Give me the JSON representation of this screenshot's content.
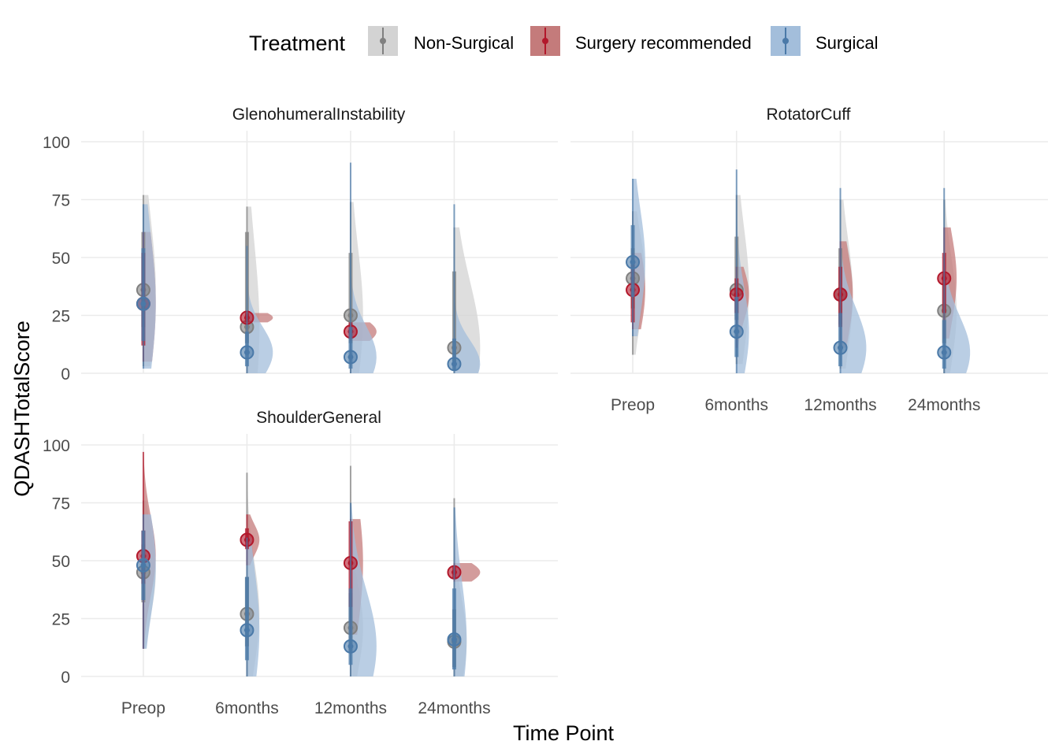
{
  "legend": {
    "title": "Treatment",
    "position": "top",
    "entries": [
      {
        "name": "Non-Surgical",
        "color": "#808080",
        "fill": "#d3d3d3"
      },
      {
        "name": "Surgery recommended",
        "color": "#b2182b",
        "fill": "#c47b7b"
      },
      {
        "name": "Surgical",
        "color": "#4a79a8",
        "fill": "#a3bedb"
      }
    ]
  },
  "axes": {
    "xlabel": "Time Point",
    "ylabel": "QDASHTotalScore"
  },
  "chart_data": {
    "type": "raincloud (half-violin + point-range)",
    "categories": [
      "Preop",
      "6months",
      "12months",
      "24months"
    ],
    "ylim": [
      0,
      100
    ],
    "yticks": [
      0,
      25,
      50,
      75,
      100
    ],
    "grid": true,
    "series_names": [
      "Non-Surgical",
      "Surgery recommended",
      "Surgical"
    ],
    "panels": [
      {
        "title": "GlenohumeralInstability",
        "series": [
          {
            "name": "Non-Surgical",
            "mean": [
              36,
              20,
              25,
              11
            ],
            "iqr": [
              [
                20,
                61
              ],
              [
                13,
                61
              ],
              [
                13,
                52
              ],
              [
                5,
                44
              ]
            ],
            "range": [
              [
                3,
                77
              ],
              [
                0,
                72
              ],
              [
                0,
                74
              ],
              [
                0,
                63
              ]
            ]
          },
          {
            "name": "Surgery recommended",
            "mean": [
              30,
              24,
              18,
              null
            ],
            "iqr": [
              [
                12,
                52
              ],
              [
                22,
                26
              ],
              [
                15,
                22
              ],
              null
            ],
            "range": [
              [
                5,
                61
              ],
              [
                22,
                26
              ],
              [
                14,
                22
              ],
              null
            ]
          },
          {
            "name": "Surgical",
            "mean": [
              30,
              9,
              7,
              4
            ],
            "iqr": [
              [
                14,
                54
              ],
              [
                3,
                18
              ],
              [
                2,
                20
              ],
              [
                1,
                15
              ]
            ],
            "range": [
              [
                2,
                73
              ],
              [
                0,
                55
              ],
              [
                0,
                91
              ],
              [
                0,
                73
              ]
            ]
          }
        ]
      },
      {
        "title": "RotatorCuff",
        "series": [
          {
            "name": "Non-Surgical",
            "mean": [
              41,
              36,
              34,
              27
            ],
            "iqr": [
              [
                28,
                54
              ],
              [
                23,
                59
              ],
              [
                21,
                54
              ],
              [
                13,
                43
              ]
            ],
            "range": [
              [
                8,
                70
              ],
              [
                4,
                77
              ],
              [
                2,
                75
              ],
              [
                0,
                75
              ]
            ]
          },
          {
            "name": "Surgery recommended",
            "mean": [
              36,
              34,
              34,
              41
            ],
            "iqr": [
              [
                22,
                47
              ],
              [
                26,
                41
              ],
              [
                20,
                46
              ],
              [
                26,
                52
              ]
            ],
            "range": [
              [
                19,
                52
              ],
              [
                11,
                46
              ],
              [
                11,
                57
              ],
              [
                15,
                63
              ]
            ]
          },
          {
            "name": "Surgical",
            "mean": [
              48,
              18,
              11,
              9
            ],
            "iqr": [
              [
                33,
                64
              ],
              [
                7,
                33
              ],
              [
                3,
                26
              ],
              [
                2,
                23
              ]
            ],
            "range": [
              [
                16,
                84
              ],
              [
                0,
                88
              ],
              [
                0,
                80
              ],
              [
                0,
                80
              ]
            ]
          }
        ]
      },
      {
        "title": "ShoulderGeneral",
        "series": [
          {
            "name": "Non-Surgical",
            "mean": [
              45,
              27,
              21,
              15
            ],
            "iqr": [
              [
                32,
                57
              ],
              [
                13,
                43
              ],
              [
                11,
                36
              ],
              [
                4,
                29
              ]
            ],
            "range": [
              [
                12,
                76
              ],
              [
                0,
                88
              ],
              [
                0,
                91
              ],
              [
                0,
                77
              ]
            ]
          },
          {
            "name": "Surgery recommended",
            "mean": [
              52,
              59,
              49,
              45
            ],
            "iqr": [
              [
                40,
                63
              ],
              [
                55,
                64
              ],
              [
                30,
                67
              ],
              [
                42,
                48
              ]
            ],
            "range": [
              [
                12,
                97
              ],
              [
                48,
                70
              ],
              [
                18,
                68
              ],
              [
                41,
                49
              ]
            ]
          },
          {
            "name": "Surgical",
            "mean": [
              48,
              20,
              13,
              16
            ],
            "iqr": [
              [
                33,
                63
              ],
              [
                7,
                43
              ],
              [
                5,
                38
              ],
              [
                3,
                38
              ]
            ],
            "range": [
              [
                12,
                70
              ],
              [
                0,
                60
              ],
              [
                0,
                75
              ],
              [
                0,
                73
              ]
            ]
          }
        ]
      }
    ]
  }
}
